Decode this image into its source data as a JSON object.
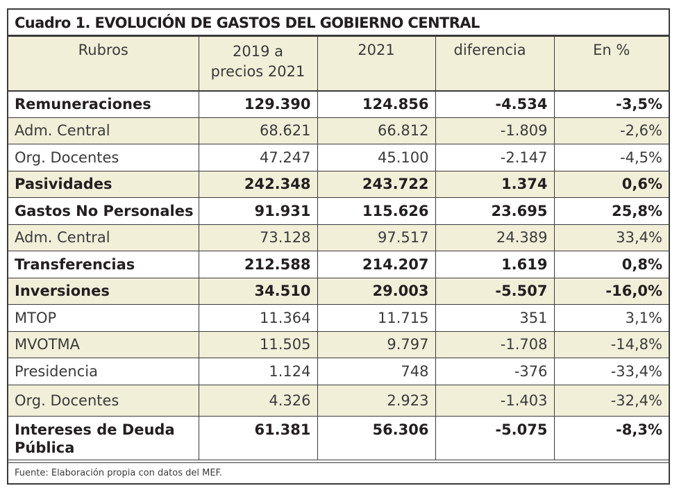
{
  "title": "Cuadro 1. EVOLUCIÓN DE GASTOS DEL GOBIERNO CENTRAL",
  "columns": {
    "rubros": "Rubros",
    "y2019": "2019 a precios 2021",
    "y2021": "2021",
    "diferencia": "diferencia",
    "pct": "En %"
  },
  "rows": [
    {
      "label": "Remuneraciones",
      "v2019": "129.390",
      "v2021": "124.856",
      "dif": "-4.534",
      "pct": "-3,5%"
    },
    {
      "label": "Adm. Central",
      "v2019": "68.621",
      "v2021": "66.812",
      "dif": "-1.809",
      "pct": "-2,6%"
    },
    {
      "label": "Org. Docentes",
      "v2019": "47.247",
      "v2021": "45.100",
      "dif": "-2.147",
      "pct": "-4,5%"
    },
    {
      "label": "Pasividades",
      "v2019": "242.348",
      "v2021": "243.722",
      "dif": "1.374",
      "pct": "0,6%"
    },
    {
      "label": "Gastos No Personales",
      "v2019": "91.931",
      "v2021": "115.626",
      "dif": "23.695",
      "pct": "25,8%"
    },
    {
      "label": "Adm. Central",
      "v2019": "73.128",
      "v2021": "97.517",
      "dif": "24.389",
      "pct": "33,4%"
    },
    {
      "label": "Transferencias",
      "v2019": "212.588",
      "v2021": "214.207",
      "dif": "1.619",
      "pct": "0,8%"
    },
    {
      "label": "Inversiones",
      "v2019": "34.510",
      "v2021": "29.003",
      "dif": "-5.507",
      "pct": "-16,0%"
    },
    {
      "label": "MTOP",
      "v2019": "11.364",
      "v2021": "11.715",
      "dif": "351",
      "pct": "3,1%"
    },
    {
      "label": "MVOTMA",
      "v2019": "11.505",
      "v2021": "9.797",
      "dif": "-1.708",
      "pct": "-14,8%"
    },
    {
      "label": "Presidencia",
      "v2019": "1.124",
      "v2021": "748",
      "dif": "-376",
      "pct": "-33,4%"
    },
    {
      "label": "Org. Docentes",
      "v2019": "4.326",
      "v2021": "2.923",
      "dif": "-1.403",
      "pct": "-32,4%"
    },
    {
      "label": "Intereses de Deuda Pública",
      "v2019": "61.381",
      "v2021": "56.306",
      "dif": "-5.075",
      "pct": "-8,3%"
    }
  ],
  "source": "Fuente: Elaboración propia con datos del MEF.",
  "colors": {
    "header_bg": "#f2efd9",
    "border": "#3a3a3a",
    "text": "#231f20"
  }
}
